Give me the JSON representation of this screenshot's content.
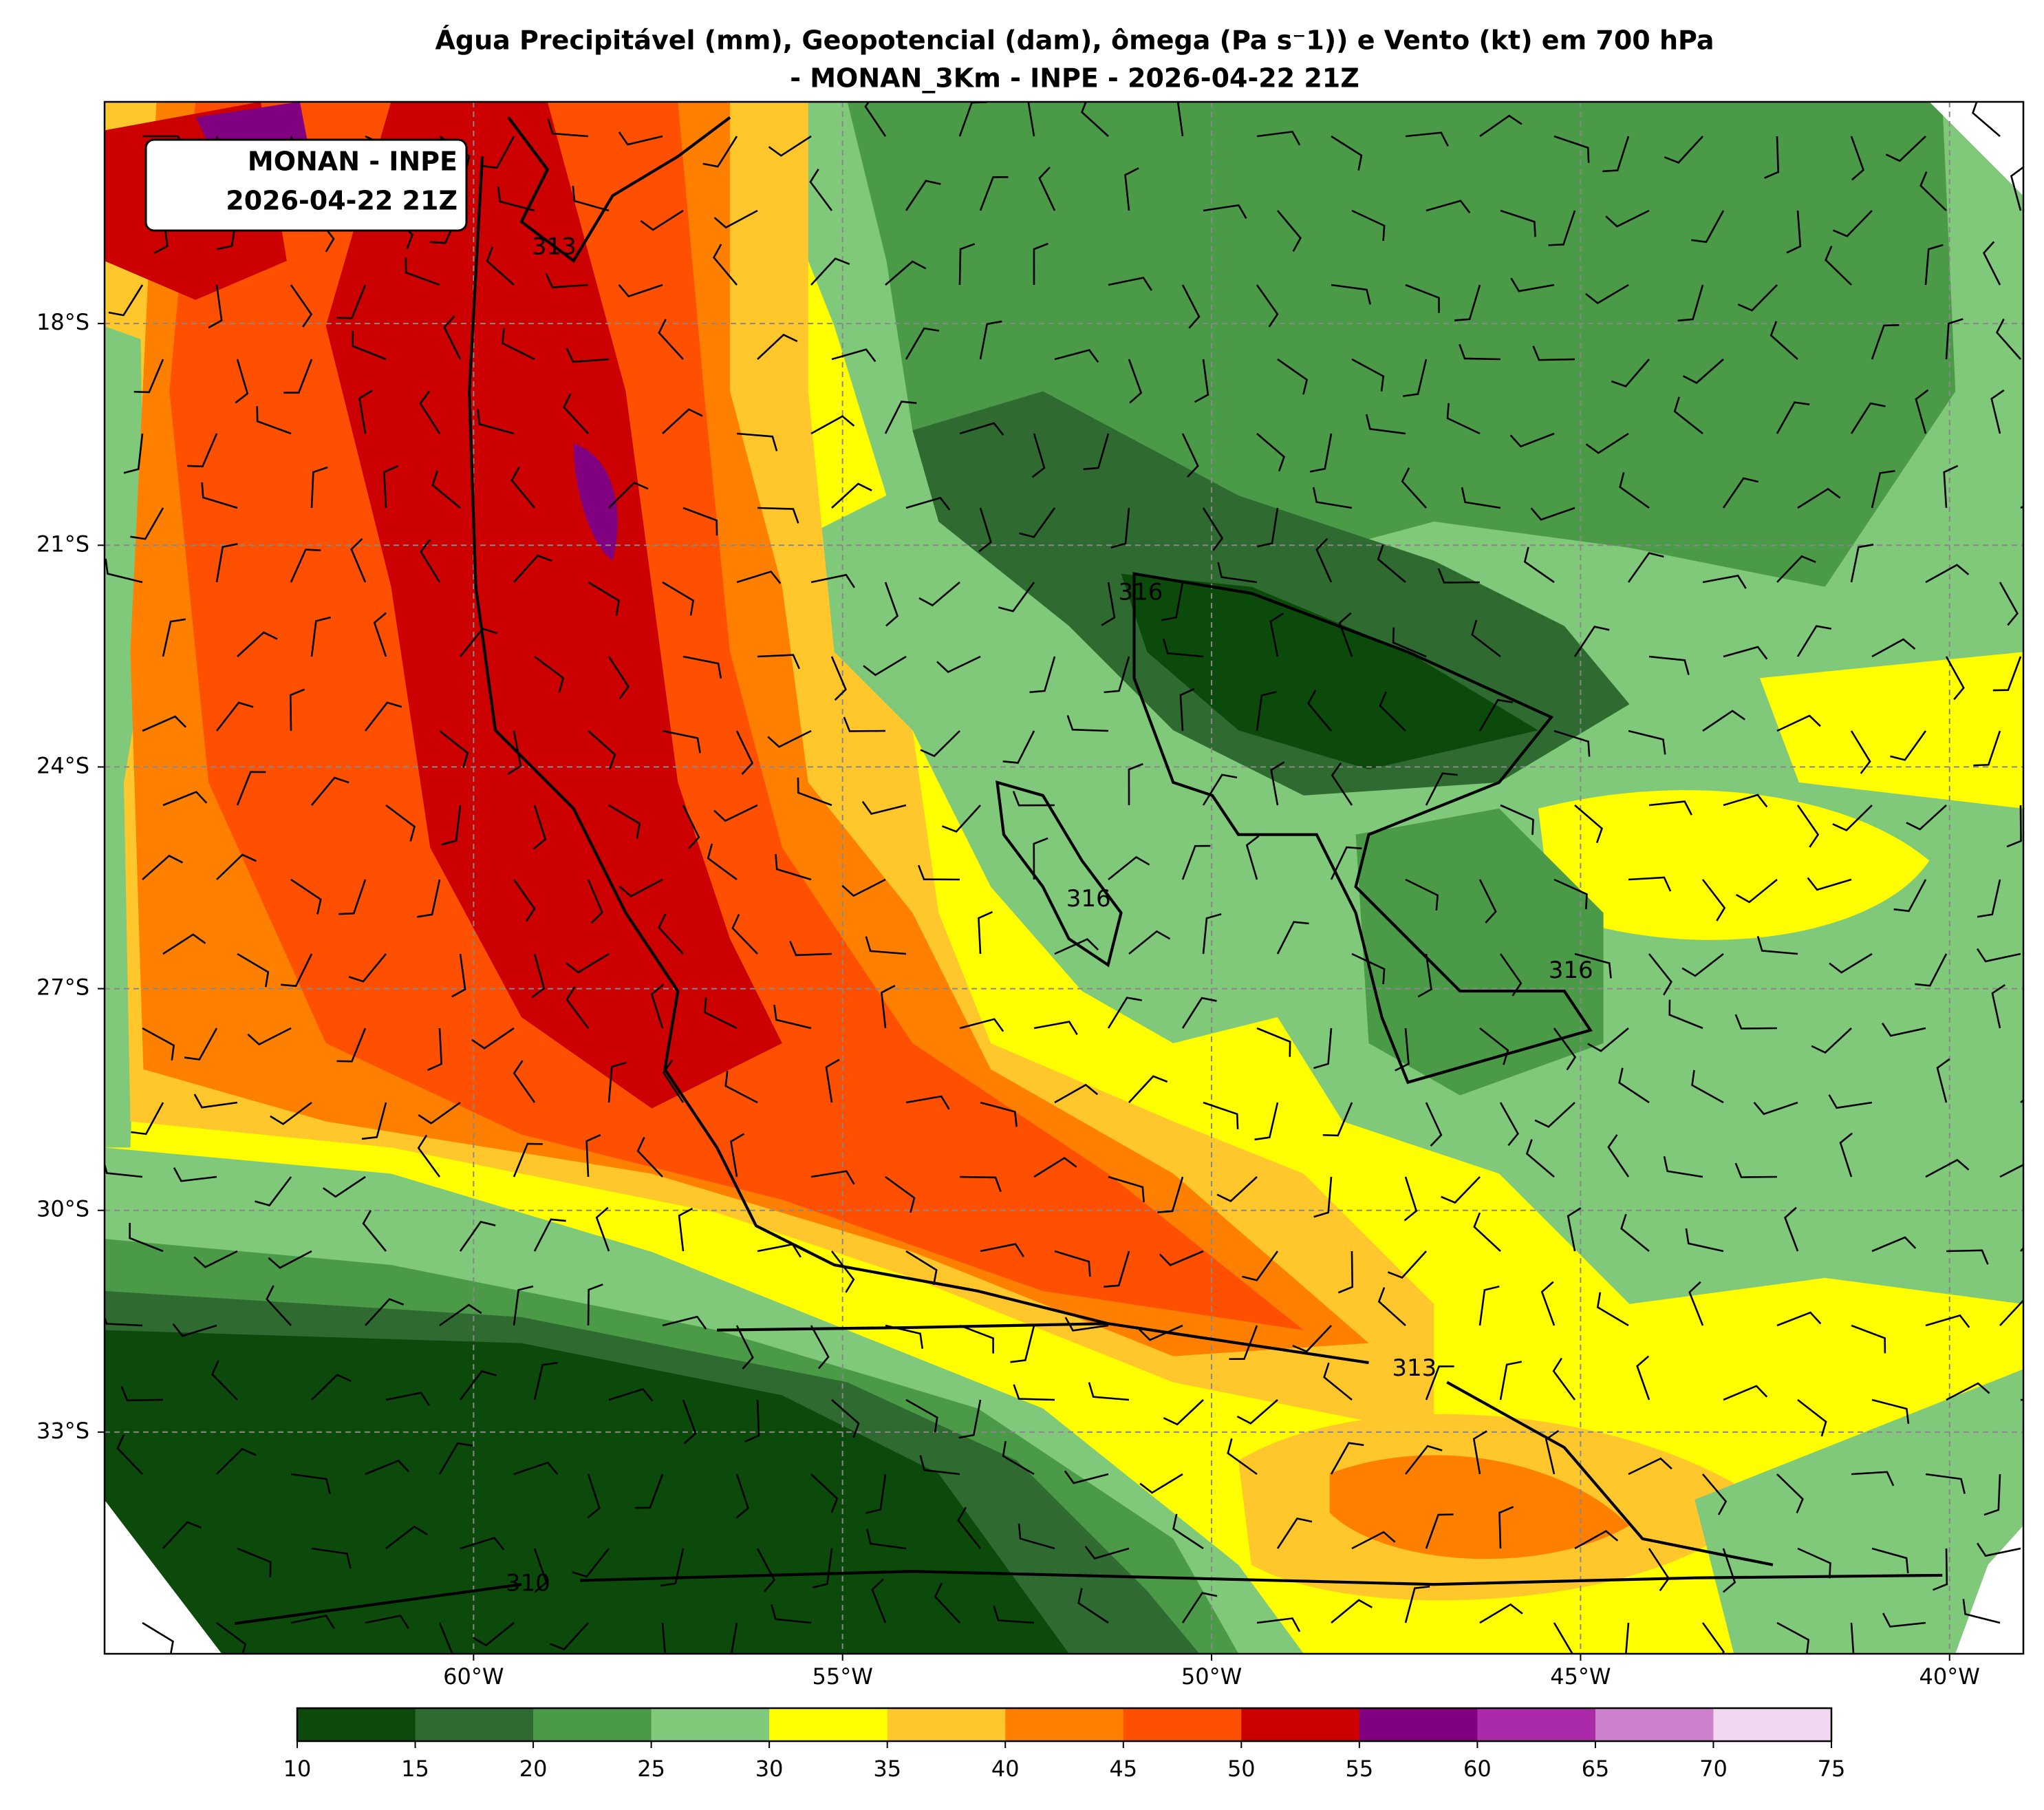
{
  "title": [
    "Água Precipitável (mm), Geopotencial (dam), ômega (Pa s⁻1)) e Vento (kt) em 700 hPa",
    "- MONAN_3Km - INPE - 2026-04-22 21Z"
  ],
  "annotation": [
    "MONAN - INPE",
    "2026-04-22 21Z"
  ],
  "map": {
    "lonlim": [
      -65,
      -39
    ],
    "latlim": [
      -15,
      -36
    ],
    "lonticks": [
      {
        "value": -60,
        "label": "60°W"
      },
      {
        "value": -55,
        "label": "55°W"
      },
      {
        "value": -50,
        "label": "50°W"
      },
      {
        "value": -45,
        "label": "45°W"
      },
      {
        "value": -40,
        "label": "40°W"
      }
    ],
    "latticks": [
      {
        "value": -18,
        "label": "18°S"
      },
      {
        "value": -21,
        "label": "21°S"
      },
      {
        "value": -24,
        "label": "24°S"
      },
      {
        "value": -27,
        "label": "27°S"
      },
      {
        "value": -30,
        "label": "30°S"
      },
      {
        "value": -33,
        "label": "33°S"
      }
    ],
    "grid": true,
    "contour_labels": [
      313,
      316,
      316,
      316,
      313,
      310
    ]
  },
  "colorbar": {
    "levels": [
      10,
      15,
      20,
      25,
      30,
      35,
      40,
      45,
      50,
      55,
      60,
      65,
      70,
      75
    ],
    "colors": [
      "#0b4a0b",
      "#2f6b31",
      "#4b9a48",
      "#80c97a",
      "#ffff00",
      "#ffc72c",
      "#ff8000",
      "#ff4f00",
      "#cc0000",
      "#800080",
      "#aa2aaa",
      "#cc80cc",
      "#f0d6ef"
    ]
  }
}
